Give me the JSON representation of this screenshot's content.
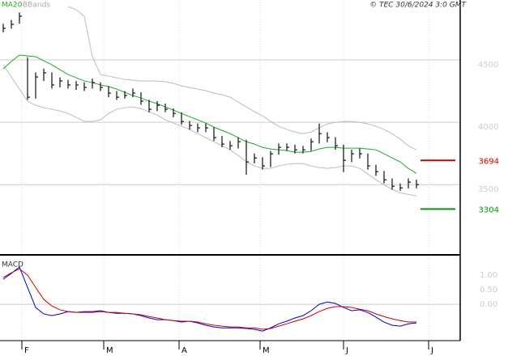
{
  "chart_data": [
    {
      "type": "ohlc",
      "source": "© TEC 30/6/2024 3:0 GMT",
      "ylim": [
        2950,
        4980
      ],
      "yticks": [
        4500,
        4000,
        3500
      ],
      "grid": true,
      "xticks": [
        {
          "value": 2.3,
          "label": "F"
        },
        {
          "value": 12.4,
          "label": "M"
        },
        {
          "value": 21.7,
          "label": "A"
        },
        {
          "value": 31.7,
          "label": "M"
        },
        {
          "value": 42,
          "label": "J"
        },
        {
          "value": 52.5,
          "label": "J"
        }
      ],
      "bar_color": "#111",
      "high": [
        4790,
        4820,
        4880,
        4520,
        4400,
        4430,
        4400,
        4360,
        4340,
        4330,
        4320,
        4350,
        4320,
        4290,
        4250,
        4250,
        4270,
        4240,
        4180,
        4170,
        4150,
        4110,
        4080,
        4010,
        3990,
        3990,
        3960,
        3890,
        3850,
        3880,
        3860,
        3750,
        3720,
        3770,
        3830,
        3830,
        3820,
        3810,
        3870,
        3990,
        3920,
        3880,
        3820,
        3780,
        3790,
        3750,
        3660,
        3610,
        3550,
        3510,
        3550,
        3540
      ],
      "low": [
        4720,
        4750,
        4790,
        4180,
        4190,
        4330,
        4270,
        4280,
        4270,
        4260,
        4250,
        4270,
        4250,
        4200,
        4180,
        4190,
        4200,
        4140,
        4080,
        4090,
        4080,
        4040,
        3980,
        3940,
        3920,
        3920,
        3850,
        3800,
        3780,
        3790,
        3580,
        3670,
        3620,
        3640,
        3740,
        3770,
        3750,
        3750,
        3770,
        3830,
        3840,
        3780,
        3600,
        3680,
        3710,
        3620,
        3570,
        3510,
        3460,
        3450,
        3470,
        3470
      ],
      "close": [
        4753,
        4785,
        4850,
        4201,
        4363,
        4396,
        4299,
        4331,
        4299,
        4299,
        4279,
        4318,
        4279,
        4234,
        4201,
        4214,
        4234,
        4169,
        4104,
        4136,
        4104,
        4071,
        4006,
        3974,
        3955,
        3955,
        3877,
        3825,
        3812,
        3844,
        3682,
        3714,
        3650,
        3747,
        3799,
        3799,
        3779,
        3779,
        3844,
        3909,
        3877,
        3812,
        3695,
        3747,
        3747,
        3650,
        3604,
        3539,
        3487,
        3474,
        3520,
        3500
      ],
      "series": [
        {
          "name": "MA20",
          "color": "#22aa22",
          "values": [
            4428,
            4487,
            4539,
            4532,
            4526,
            4493,
            4461,
            4422,
            4383,
            4357,
            4331,
            4318,
            4299,
            4286,
            4266,
            4240,
            4214,
            4195,
            4169,
            4149,
            4123,
            4097,
            4071,
            4045,
            4019,
            3994,
            3961,
            3935,
            3909,
            3877,
            3844,
            3825,
            3799,
            3786,
            3779,
            3773,
            3760,
            3760,
            3766,
            3786,
            3799,
            3799,
            3792,
            3792,
            3792,
            3786,
            3779,
            3747,
            3714,
            3682,
            3630,
            3591
          ]
        },
        {
          "name": "BBands",
          "color": "#bbbbbb",
          "upper": [
            null,
            null,
            null,
            null,
            null,
            null,
            null,
            null,
            4928,
            4902,
            4850,
            4526,
            4383,
            4370,
            4357,
            4344,
            4337,
            4331,
            4331,
            4331,
            4325,
            4312,
            4292,
            4279,
            4266,
            4253,
            4234,
            4221,
            4201,
            4162,
            4123,
            4084,
            4052,
            4006,
            3968,
            3942,
            3922,
            3909,
            3922,
            3955,
            3987,
            4000,
            4006,
            4006,
            4000,
            3987,
            3968,
            3942,
            3909,
            3864,
            3812,
            3779
          ],
          "lower": [
            4461,
            4363,
            4266,
            4169,
            4136,
            4117,
            4104,
            4091,
            4071,
            4039,
            4006,
            4006,
            4019,
            4071,
            4104,
            4117,
            4123,
            4110,
            4084,
            4058,
            4019,
            3994,
            3968,
            3942,
            3909,
            3877,
            3844,
            3812,
            3779,
            3734,
            3682,
            3650,
            3630,
            3630,
            3650,
            3663,
            3669,
            3669,
            3650,
            3637,
            3630,
            3637,
            3650,
            3650,
            3630,
            3585,
            3539,
            3500,
            3461,
            3435,
            3422,
            3409
          ]
        }
      ],
      "levels": [
        {
          "value": 3694,
          "color": "#cc0000"
        },
        {
          "value": 3304,
          "color": "#009900"
        }
      ]
    },
    {
      "type": "line",
      "title": "MACD",
      "ylim": [
        -1.22,
        1.67
      ],
      "yticks": [
        {
          "value": 1,
          "label": "1.00"
        },
        {
          "value": 0.5,
          "label": "0.50"
        },
        {
          "value": 0,
          "label": "0.00"
        }
      ],
      "series": [
        {
          "color": "#0000cc",
          "values": [
            0.86,
            1.06,
            1.28,
            0.58,
            -0.11,
            -0.33,
            -0.39,
            -0.33,
            -0.25,
            -0.28,
            -0.25,
            -0.25,
            -0.22,
            -0.28,
            -0.31,
            -0.31,
            -0.33,
            -0.39,
            -0.47,
            -0.53,
            -0.53,
            -0.56,
            -0.61,
            -0.58,
            -0.64,
            -0.72,
            -0.78,
            -0.81,
            -0.81,
            -0.81,
            -0.83,
            -0.86,
            -0.92,
            -0.81,
            -0.67,
            -0.58,
            -0.47,
            -0.39,
            -0.22,
            0,
            0.08,
            0.03,
            -0.11,
            -0.22,
            -0.19,
            -0.28,
            -0.44,
            -0.61,
            -0.72,
            -0.75,
            -0.67,
            -0.64
          ]
        },
        {
          "color": "#cc0000",
          "values": [
            0.92,
            1.08,
            1.22,
            1,
            0.58,
            0.17,
            -0.06,
            -0.19,
            -0.25,
            -0.28,
            -0.28,
            -0.28,
            -0.25,
            -0.28,
            -0.28,
            -0.31,
            -0.33,
            -0.36,
            -0.42,
            -0.47,
            -0.53,
            -0.56,
            -0.58,
            -0.58,
            -0.61,
            -0.67,
            -0.72,
            -0.75,
            -0.78,
            -0.78,
            -0.81,
            -0.81,
            -0.86,
            -0.83,
            -0.75,
            -0.67,
            -0.58,
            -0.5,
            -0.39,
            -0.25,
            -0.14,
            -0.08,
            -0.08,
            -0.11,
            -0.17,
            -0.22,
            -0.33,
            -0.42,
            -0.5,
            -0.56,
            -0.61,
            -0.61
          ]
        }
      ]
    }
  ]
}
